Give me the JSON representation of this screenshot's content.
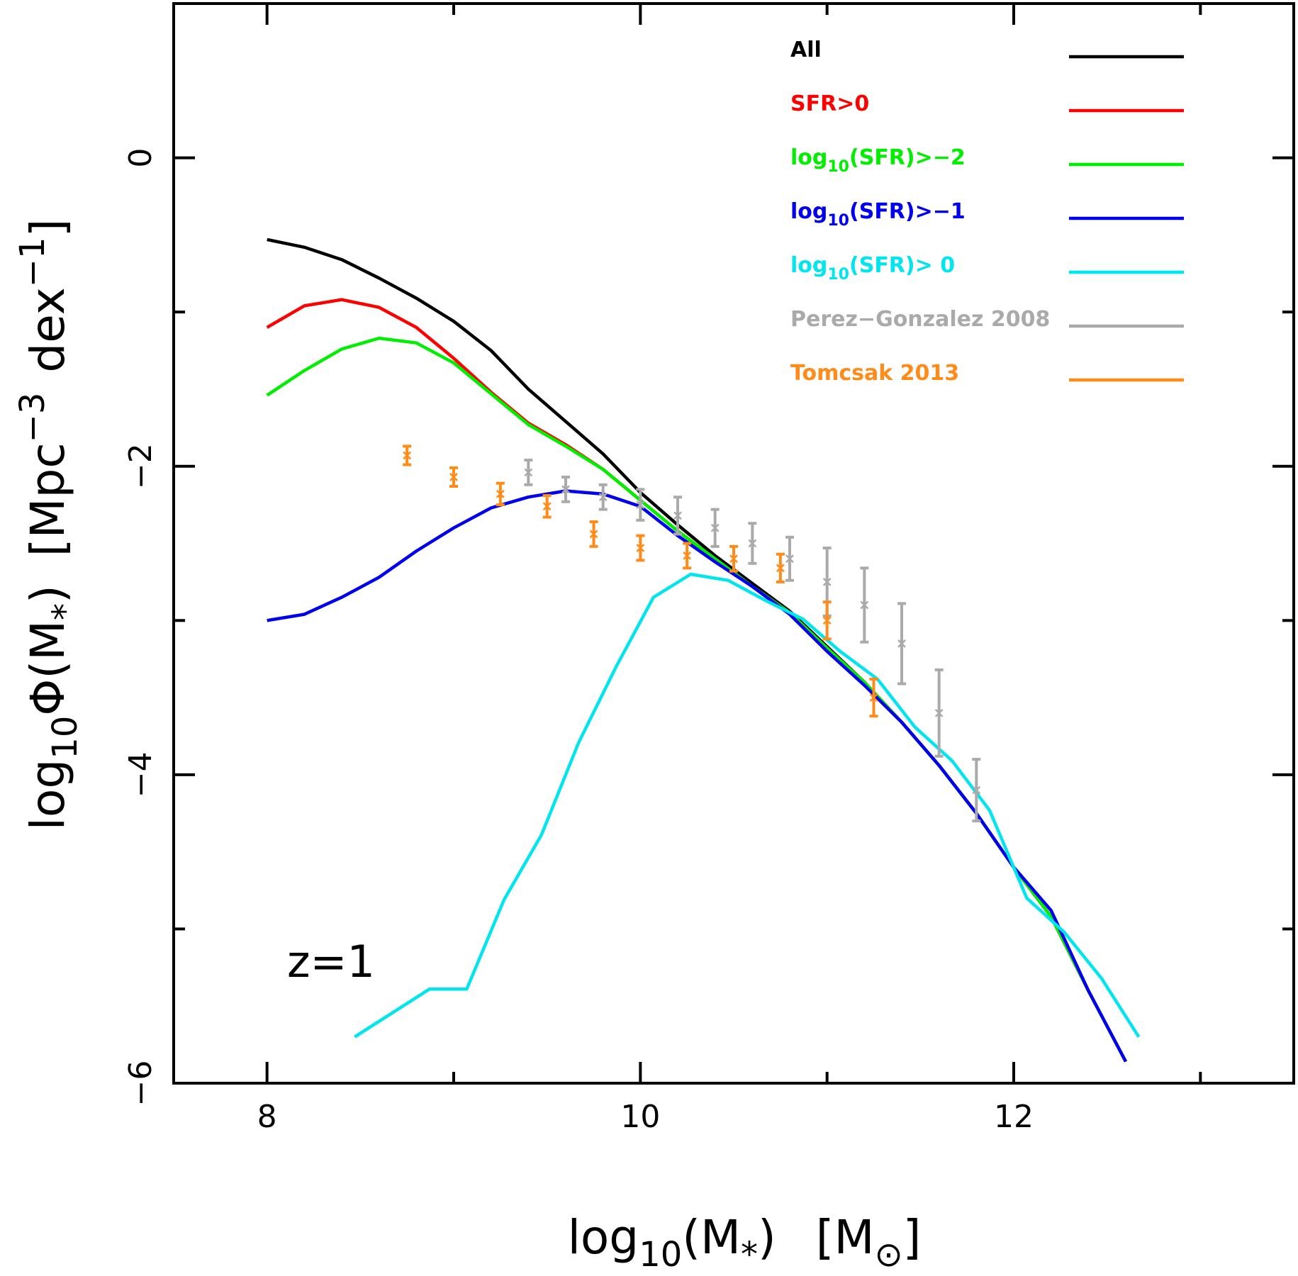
{
  "chart_data": {
    "type": "line",
    "title": "",
    "annotation": "z=1",
    "xlabel": {
      "base": "log",
      "sub1": "10",
      "mid": "(M",
      "star": "*",
      "close": ")",
      "unit_open": "[M",
      "sun": "⊙",
      "unit_close": "]"
    },
    "ylabel": {
      "base": "log",
      "sub1": "10",
      "mid": "Φ(M",
      "star": "*",
      "close": ")",
      "unit_open": "[Mpc",
      "exp1": "−3",
      "mid2": "dex",
      "exp2": "−1",
      "unit_close": "]"
    },
    "xlim": [
      7.5,
      13.5
    ],
    "ylim": [
      -6,
      1
    ],
    "xticks_major": [
      8,
      10,
      12
    ],
    "xticks_major_labels": [
      "8",
      "10",
      "12"
    ],
    "xticks_minor": [
      9,
      11,
      13
    ],
    "yticks_major": [
      0,
      -2,
      -4,
      -6
    ],
    "yticks_major_labels": [
      "0",
      "−2",
      "−4",
      "−6"
    ],
    "yticks_minor": [
      -1,
      -3,
      -5
    ],
    "legend_position": "top-right",
    "series": [
      {
        "name": "All",
        "label": "All",
        "color": "#000000",
        "kind": "line",
        "x": [
          8.0,
          8.2,
          8.4,
          8.6,
          8.8,
          9.0,
          9.2,
          9.4,
          9.6,
          9.8,
          10.0,
          10.2,
          10.4,
          10.6,
          10.8,
          11.0,
          11.2,
          11.4,
          11.6,
          11.8,
          12.0,
          12.2,
          12.4,
          12.6
        ],
        "y": [
          -0.53,
          -0.58,
          -0.66,
          -0.78,
          -0.91,
          -1.06,
          -1.25,
          -1.5,
          -1.71,
          -1.92,
          -2.17,
          -2.38,
          -2.58,
          -2.76,
          -2.94,
          -3.17,
          -3.4,
          -3.66,
          -3.94,
          -4.25,
          -4.6,
          -4.92,
          -5.4,
          -5.86
        ]
      },
      {
        "name": "SFR>0",
        "label": "SFR>0",
        "color": "#ff0000",
        "kind": "line",
        "x": [
          8.0,
          8.2,
          8.4,
          8.6,
          8.8,
          9.0,
          9.2,
          9.4,
          9.6,
          9.8,
          10.0,
          10.2,
          10.4,
          10.6,
          10.8,
          11.0,
          11.2,
          11.4,
          11.6,
          11.8,
          12.0,
          12.2,
          12.4,
          12.6
        ],
        "y": [
          -1.1,
          -0.96,
          -0.92,
          -0.97,
          -1.1,
          -1.3,
          -1.52,
          -1.72,
          -1.86,
          -2.02,
          -2.22,
          -2.42,
          -2.6,
          -2.78,
          -2.95,
          -3.18,
          -3.4,
          -3.66,
          -3.94,
          -4.25,
          -4.6,
          -4.92,
          -5.4,
          -5.86
        ]
      },
      {
        "name": "log10(SFR)>-2",
        "label": {
          "pre": "log",
          "sub": "10",
          "post": "(SFR)>−2"
        },
        "color": "#00ee00",
        "kind": "line",
        "x": [
          8.0,
          8.2,
          8.4,
          8.6,
          8.8,
          9.0,
          9.2,
          9.4,
          9.6,
          9.8,
          10.0,
          10.2,
          10.4,
          10.6,
          10.8,
          11.0,
          11.2,
          11.4,
          11.6,
          11.8,
          12.0,
          12.2,
          12.4,
          12.6
        ],
        "y": [
          -1.54,
          -1.38,
          -1.24,
          -1.17,
          -1.2,
          -1.33,
          -1.53,
          -1.73,
          -1.87,
          -2.02,
          -2.22,
          -2.42,
          -2.6,
          -2.78,
          -2.95,
          -3.18,
          -3.4,
          -3.66,
          -3.94,
          -4.25,
          -4.6,
          -4.92,
          -5.4,
          -5.86
        ]
      },
      {
        "name": "log10(SFR)>-1",
        "label": {
          "pre": "log",
          "sub": "10",
          "post": "(SFR)>−1"
        },
        "color": "#0000ee",
        "kind": "line",
        "x": [
          8.0,
          8.2,
          8.4,
          8.6,
          8.8,
          9.0,
          9.2,
          9.4,
          9.6,
          9.8,
          10.0,
          10.2,
          10.4,
          10.6,
          10.8,
          11.0,
          11.2,
          11.4,
          11.6,
          11.8,
          12.0,
          12.2,
          12.4,
          12.6
        ],
        "y": [
          -3.0,
          -2.96,
          -2.85,
          -2.72,
          -2.55,
          -2.4,
          -2.27,
          -2.2,
          -2.16,
          -2.18,
          -2.26,
          -2.45,
          -2.62,
          -2.78,
          -2.96,
          -3.2,
          -3.42,
          -3.66,
          -3.94,
          -4.25,
          -4.6,
          -4.88,
          -5.4,
          -5.86
        ]
      },
      {
        "name": "log10(SFR)> 0",
        "label": {
          "pre": "log",
          "sub": "10",
          "post": "(SFR)> 0"
        },
        "color": "#00e5ee",
        "kind": "line",
        "x": [
          8.47,
          8.87,
          9.07,
          9.27,
          9.47,
          9.67,
          9.87,
          10.07,
          10.27,
          10.47,
          10.67,
          10.87,
          11.07,
          11.27,
          11.47,
          11.67,
          11.87,
          12.07,
          12.27,
          12.47,
          12.67
        ],
        "y": [
          -5.7,
          -5.39,
          -5.39,
          -4.81,
          -4.39,
          -3.79,
          -3.3,
          -2.85,
          -2.7,
          -2.74,
          -2.87,
          -2.99,
          -3.2,
          -3.38,
          -3.69,
          -3.91,
          -4.23,
          -4.8,
          -5.02,
          -5.32,
          -5.7
        ]
      },
      {
        "name": "Perez-Gonzalez 2008",
        "label": "Perez−Gonzalez 2008",
        "color": "#aaaaaa",
        "kind": "errorbar",
        "x": [
          9.4,
          9.6,
          9.8,
          10.0,
          10.2,
          10.4,
          10.6,
          10.8,
          11.0,
          11.2,
          11.4,
          11.6,
          11.8
        ],
        "y": [
          -2.04,
          -2.15,
          -2.2,
          -2.25,
          -2.32,
          -2.4,
          -2.5,
          -2.6,
          -2.75,
          -2.9,
          -3.15,
          -3.6,
          -4.1
        ],
        "err": [
          0.08,
          0.08,
          0.08,
          0.1,
          0.12,
          0.12,
          0.13,
          0.14,
          0.22,
          0.24,
          0.26,
          0.28,
          0.2
        ]
      },
      {
        "name": "Tomcsak 2013",
        "label": "Tomcsak 2013",
        "color": "#ff8c1a",
        "kind": "errorbar",
        "x": [
          8.75,
          9.0,
          9.25,
          9.5,
          9.75,
          10.0,
          10.25,
          10.5,
          10.75,
          11.0,
          11.25
        ],
        "y": [
          -1.93,
          -2.07,
          -2.18,
          -2.26,
          -2.44,
          -2.53,
          -2.58,
          -2.6,
          -2.66,
          -3.0,
          -3.5
        ],
        "err": [
          0.06,
          0.06,
          0.07,
          0.07,
          0.08,
          0.08,
          0.08,
          0.08,
          0.09,
          0.12,
          0.12
        ]
      }
    ]
  }
}
